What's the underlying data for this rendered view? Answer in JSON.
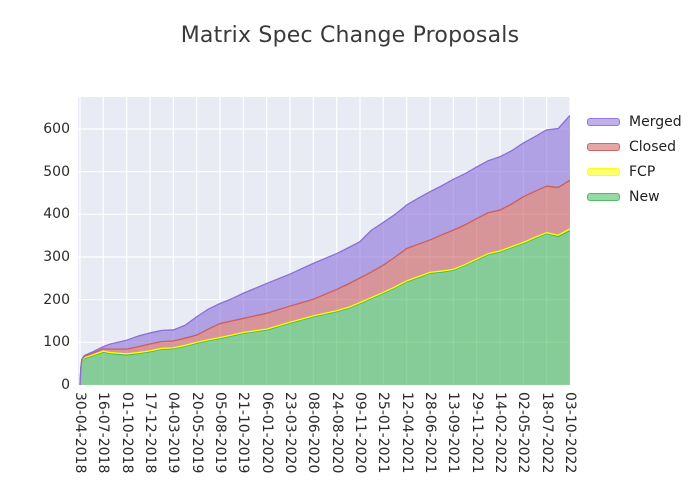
{
  "chart_data": {
    "type": "area",
    "stacked": true,
    "title": "Matrix Spec Change Proposals",
    "plot_bg": "#e9ebf4",
    "grid_color": "#ffffff",
    "grid": true,
    "fill_alpha": 0.6,
    "xlabel": "",
    "ylabel": "",
    "xlim_days": [
      0,
      1617
    ],
    "ylim": [
      0,
      675
    ],
    "y_ticks": [
      0,
      100,
      200,
      300,
      400,
      500,
      600
    ],
    "x_tick_days": [
      0,
      77,
      154,
      231,
      308,
      385,
      462,
      539,
      616,
      693,
      770,
      847,
      924,
      1001,
      1078,
      1155,
      1232,
      1309,
      1386,
      1463,
      1540,
      1617
    ],
    "x_tick_labels": [
      "30-04-2018",
      "16-07-2018",
      "01-10-2018",
      "17-12-2018",
      "04-03-2019",
      "20-05-2019",
      "05-08-2019",
      "21-10-2019",
      "06-01-2020",
      "23-03-2020",
      "08-06-2020",
      "24-08-2020",
      "09-11-2020",
      "25-01-2021",
      "12-04-2021",
      "28-06-2021",
      "13-09-2021",
      "29-11-2021",
      "14-02-2022",
      "02-05-2022",
      "18-07-2022",
      "03-10-2022"
    ],
    "x_days": [
      0,
      3,
      6,
      14,
      40,
      77,
      100,
      154,
      193,
      231,
      270,
      308,
      347,
      385,
      424,
      462,
      500,
      539,
      616,
      693,
      770,
      847,
      886,
      924,
      962,
      1001,
      1040,
      1078,
      1117,
      1155,
      1194,
      1232,
      1270,
      1309,
      1348,
      1386,
      1424,
      1463,
      1501,
      1540,
      1578,
      1617
    ],
    "series": [
      {
        "name": "New",
        "color": "#44b85c",
        "values": [
          0,
          40,
          55,
          62,
          68,
          77,
          74,
          70,
          74,
          78,
          84,
          85,
          91,
          98,
          104,
          109,
          115,
          121,
          129,
          145,
          160,
          172,
          180,
          191,
          203,
          215,
          228,
          242,
          252,
          262,
          265,
          269,
          280,
          293,
          306,
          312,
          322,
          332,
          344,
          355,
          348,
          362
        ]
      },
      {
        "name": "FCP",
        "color": "#ffff00",
        "values": [
          0,
          1,
          2,
          2,
          2,
          2,
          2,
          3,
          2,
          2,
          2,
          2,
          2,
          2,
          2,
          2,
          2,
          2,
          2,
          2,
          2,
          2,
          2,
          2,
          2,
          2,
          2,
          2,
          2,
          2,
          2,
          2,
          2,
          2,
          2,
          2,
          2,
          2,
          2,
          2,
          3,
          4
        ]
      },
      {
        "name": "Closed",
        "color": "#cd5c5c",
        "values": [
          0,
          1,
          2,
          3,
          4,
          6,
          8,
          11,
          14,
          16,
          16,
          16,
          17,
          17,
          25,
          33,
          33,
          33,
          37,
          38,
          39,
          50,
          55,
          58,
          60,
          64,
          70,
          76,
          76,
          76,
          85,
          92,
          93,
          95,
          96,
          96,
          100,
          107,
          108,
          109,
          112,
          114
        ]
      },
      {
        "name": "Merged",
        "color": "#8a6fd8",
        "values": [
          0,
          1,
          1,
          2,
          3,
          5,
          12,
          21,
          25,
          26,
          26,
          26,
          30,
          43,
          47,
          47,
          52,
          59,
          70,
          75,
          84,
          84,
          85,
          85,
          98,
          100,
          100,
          102,
          108,
          113,
          115,
          119,
          120,
          121,
          122,
          125,
          125,
          126,
          128,
          132,
          138,
          152
        ]
      }
    ],
    "legend": {
      "position": "right",
      "entries": [
        "Merged",
        "Closed",
        "FCP",
        "New"
      ]
    }
  }
}
